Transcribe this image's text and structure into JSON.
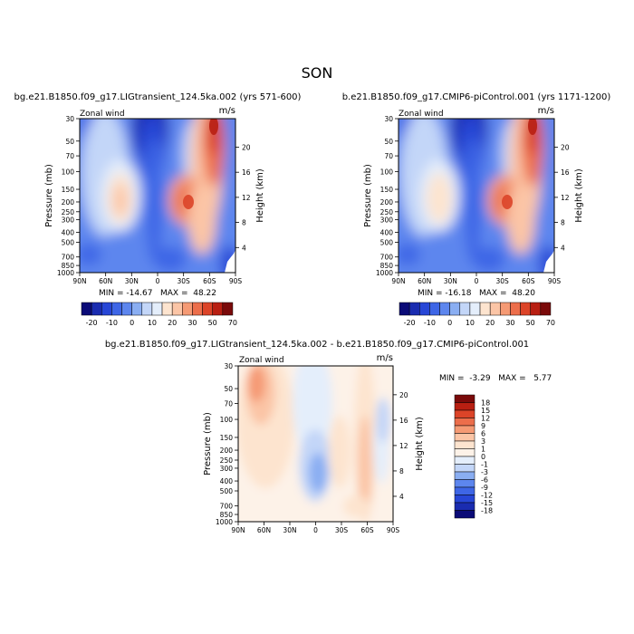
{
  "page": {
    "season": "SON"
  },
  "panels": [
    {
      "case_title": "bg.e21.B1850.f09_g17.LIGtransient_124.5ka.002 (yrs 571-600)",
      "variable": "Zonal wind",
      "units": "m/s",
      "min_max": "MIN = -14.67   MAX =  48.22",
      "colorbar_labels": [
        "-20",
        "-10",
        "0",
        "10",
        "20",
        "30",
        "50",
        "70"
      ]
    },
    {
      "case_title": "b.e21.B1850.f09_g17.CMIP6-piControl.001 (yrs 1171-1200)",
      "variable": "Zonal wind",
      "units": "m/s",
      "min_max": "MIN = -16.18   MAX =  48.20",
      "colorbar_labels": [
        "-20",
        "-10",
        "0",
        "10",
        "20",
        "30",
        "50",
        "70"
      ]
    },
    {
      "case_title": "bg.e21.B1850.f09_g17.LIGtransient_124.5ka.002 - b.e21.B1850.f09_g17.CMIP6-piControl.001",
      "variable": "Zonal wind",
      "units": "m/s",
      "min_max": "MIN =  -3.29   MAX =   5.77",
      "colorbar_labels": [
        "18",
        "15",
        "12",
        "9",
        "6",
        "3",
        "1",
        "0",
        "-1",
        "-3",
        "-6",
        "-9",
        "-12",
        "-15",
        "-18"
      ]
    }
  ],
  "axes": {
    "ylabel_left": "Pressure (mb)",
    "ylabel_right": "Height (km)",
    "x_ticks": [
      "90N",
      "60N",
      "30N",
      "0",
      "30S",
      "60S",
      "90S"
    ],
    "pressure_ticks": [
      "30",
      "50",
      "70",
      "100",
      "150",
      "200",
      "250",
      "300",
      "400",
      "500",
      "700",
      "850",
      "1000"
    ],
    "height_ticks": [
      "20",
      "16",
      "12",
      "8",
      "4"
    ]
  },
  "colors": {
    "abs_scale": [
      "#0b0b77",
      "#1a2cb0",
      "#2746d6",
      "#3e66e6",
      "#5d86ee",
      "#8aaef2",
      "#c3d6f8",
      "#e4eefb",
      "#fde4cf",
      "#fbc5a6",
      "#f59a74",
      "#ec6e4b",
      "#dc4428",
      "#b81f12",
      "#7a0a0a"
    ],
    "diff_scale": [
      "#7a0a0a",
      "#b81f12",
      "#dc4428",
      "#ec6e4b",
      "#f59a74",
      "#fbc5a6",
      "#fde4cf",
      "#fdf2e8",
      "#e4eefb",
      "#c3d6f8",
      "#8aaef2",
      "#5d86ee",
      "#3e66e6",
      "#2746d6",
      "#1a2cb0",
      "#0b0b77"
    ]
  },
  "chart_data": [
    {
      "type": "heatmap",
      "title": "bg.e21.B1850.f09_g17.LIGtransient_124.5ka.002 (yrs 571-600)",
      "xlabel": "",
      "ylabel": "Pressure (mb)",
      "x_range": [
        "90N",
        "90S"
      ],
      "y_range_mb": [
        1000,
        30
      ],
      "min": -14.67,
      "max": 48.22,
      "features": [
        {
          "kind": "westerly_jet",
          "lat": -55,
          "pressure_mb": 200,
          "peak": 48.2
        },
        {
          "kind": "westerly_jet",
          "lat": 35,
          "pressure_mb": 200,
          "peak": 22
        },
        {
          "kind": "easterlies",
          "lat": 5,
          "pressure_mb": 70,
          "peak": -14.7
        }
      ]
    },
    {
      "type": "heatmap",
      "title": "b.e21.B1850.f09_g17.CMIP6-piControl.001 (yrs 1171-1200)",
      "xlabel": "",
      "ylabel": "Pressure (mb)",
      "x_range": [
        "90N",
        "90S"
      ],
      "y_range_mb": [
        1000,
        30
      ],
      "min": -16.18,
      "max": 48.2,
      "features": [
        {
          "kind": "westerly_jet",
          "lat": -55,
          "pressure_mb": 200,
          "peak": 48.2
        },
        {
          "kind": "westerly_jet",
          "lat": 35,
          "pressure_mb": 200,
          "peak": 20
        },
        {
          "kind": "easterlies",
          "lat": 5,
          "pressure_mb": 70,
          "peak": -16.2
        }
      ]
    },
    {
      "type": "heatmap",
      "title": "bg.e21.B1850.f09_g17.LIGtransient_124.5ka.002 - b.e21.B1850.f09_g17.CMIP6-piControl.001",
      "xlabel": "",
      "ylabel": "Pressure (mb)",
      "x_range": [
        "90N",
        "90S"
      ],
      "y_range_mb": [
        1000,
        30
      ],
      "min": -3.29,
      "max": 5.77,
      "levels": [
        -18,
        -15,
        -12,
        -9,
        -6,
        -3,
        -1,
        0,
        1,
        3,
        6,
        9,
        12,
        15,
        18
      ]
    }
  ]
}
